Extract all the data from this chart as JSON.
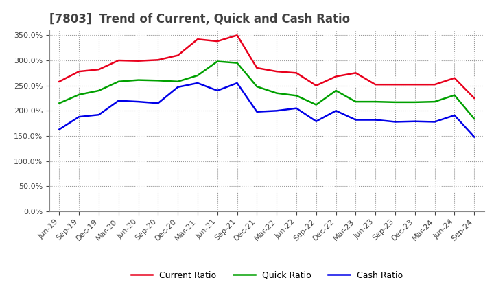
{
  "title": "[7803]  Trend of Current, Quick and Cash Ratio",
  "x_labels": [
    "Jun-19",
    "Sep-19",
    "Dec-19",
    "Mar-20",
    "Jun-20",
    "Sep-20",
    "Dec-20",
    "Mar-21",
    "Jun-21",
    "Sep-21",
    "Dec-21",
    "Mar-22",
    "Jun-22",
    "Sep-22",
    "Dec-22",
    "Mar-23",
    "Jun-23",
    "Sep-23",
    "Dec-23",
    "Mar-24",
    "Jun-24",
    "Sep-24"
  ],
  "current_ratio": [
    258,
    278,
    282,
    300,
    299,
    301,
    310,
    342,
    338,
    350,
    285,
    278,
    275,
    250,
    268,
    275,
    252,
    252,
    252,
    252,
    265,
    225
  ],
  "quick_ratio": [
    215,
    232,
    240,
    258,
    261,
    260,
    258,
    270,
    298,
    295,
    248,
    235,
    230,
    212,
    240,
    218,
    218,
    217,
    217,
    218,
    231,
    184
  ],
  "cash_ratio": [
    163,
    188,
    192,
    220,
    218,
    215,
    247,
    255,
    240,
    255,
    198,
    200,
    205,
    179,
    200,
    182,
    182,
    178,
    179,
    178,
    191,
    148
  ],
  "current_color": "#e8001c",
  "quick_color": "#00a000",
  "cash_color": "#0000e8",
  "ylim": [
    0,
    360
  ],
  "yticks": [
    0,
    50,
    100,
    150,
    200,
    250,
    300,
    350
  ],
  "background_color": "#ffffff",
  "plot_bg_color": "#ffffff",
  "grid_color": "#999999",
  "legend_labels": [
    "Current Ratio",
    "Quick Ratio",
    "Cash Ratio"
  ],
  "title_color": "#404040",
  "tick_fontsize": 8,
  "title_fontsize": 12
}
